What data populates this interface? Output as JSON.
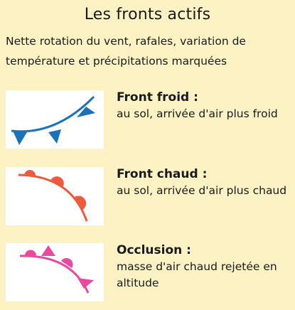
{
  "header": {
    "title": "Les fronts actifs",
    "intro": "Nette rotation du vent, rafales, variation de température et précipitations marquées"
  },
  "legend": [
    {
      "title": "Front froid :",
      "description": "au sol, arrivée d'air plus froid",
      "color": "#1a73b8",
      "symbol": "triangles"
    },
    {
      "title": "Front chaud :",
      "description": "au sol, arrivée d'air plus chaud",
      "color": "#ef5a3c",
      "symbol": "semicircles"
    },
    {
      "title": "Occlusion :",
      "description": "masse d'air chaud rejetée en altitude",
      "color": "#e84aa0",
      "symbol": "alternating"
    }
  ]
}
